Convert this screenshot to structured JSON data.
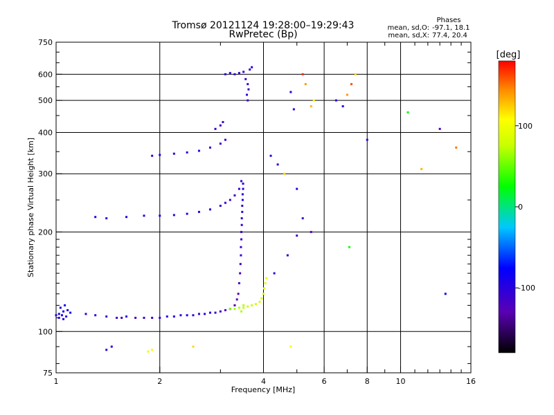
{
  "header": {
    "title": "Tromsø 20121124 19:28:00–19:29:43",
    "subtitle": "RwPretec (Bp)",
    "phase_heading": "Phases",
    "phase_o_label": "mean, sd,O:",
    "phase_o_value": "-97.1, 18.1",
    "phase_x_label": "mean, sd,X:",
    "phase_x_value": "77.4, 20.4"
  },
  "chart_data": {
    "type": "scatter",
    "xlabel": "Frequency [MHz]",
    "ylabel": "Stationary phase Virtual Height [km]",
    "xscale": "log",
    "yscale": "log",
    "xlim": [
      1,
      16
    ],
    "ylim": [
      75,
      750
    ],
    "grid": true,
    "xticks": [
      1,
      2,
      4,
      6,
      8,
      10,
      16
    ],
    "xticklabels": [
      "1",
      "2",
      "4",
      "6",
      "8",
      "10",
      "16"
    ],
    "xgrid": [
      2,
      4,
      6,
      8,
      10
    ],
    "yticks": [
      75,
      100,
      200,
      300,
      400,
      500,
      600,
      750
    ],
    "yticklabels": [
      "75",
      "100",
      "200",
      "300",
      "400",
      "500",
      "600",
      "750"
    ],
    "ygrid": [
      100,
      200,
      300,
      400,
      500,
      600
    ],
    "colorbar": {
      "label": "[deg]",
      "range": [
        -180,
        180
      ],
      "ticks": [
        100,
        0,
        -100
      ],
      "ticklabels": [
        "100",
        "0",
        "-100"
      ]
    },
    "series": [
      {
        "values": [
          [
            1.0,
            112,
            -95
          ],
          [
            1.02,
            113,
            -80
          ],
          [
            1.04,
            112,
            -95
          ],
          [
            1.05,
            115,
            -85
          ],
          [
            1.07,
            111,
            -100
          ],
          [
            1.03,
            118,
            -90
          ],
          [
            1.06,
            120,
            -80
          ],
          [
            1.08,
            116,
            -95
          ],
          [
            1.1,
            114,
            -90
          ],
          [
            1.02,
            110,
            -100
          ],
          [
            1.05,
            109,
            -95
          ]
        ]
      },
      {
        "values": [
          [
            1.22,
            113,
            -100
          ],
          [
            1.3,
            112,
            -105
          ],
          [
            1.4,
            111,
            -105
          ],
          [
            1.5,
            110,
            -110
          ],
          [
            1.55,
            110,
            -108
          ],
          [
            1.6,
            111,
            -100
          ],
          [
            1.7,
            110,
            -110
          ],
          [
            1.8,
            110,
            -108
          ],
          [
            1.9,
            110,
            -105
          ],
          [
            2.0,
            110,
            -100
          ],
          [
            2.1,
            111,
            -100
          ],
          [
            2.2,
            111,
            -98
          ],
          [
            2.3,
            112,
            -100
          ],
          [
            2.4,
            112,
            -98
          ],
          [
            2.5,
            112,
            -100
          ],
          [
            2.6,
            113,
            -95
          ],
          [
            2.7,
            113,
            -100
          ],
          [
            2.8,
            114,
            -100
          ],
          [
            2.9,
            114,
            -105
          ],
          [
            3.0,
            115,
            -110
          ],
          [
            3.1,
            116,
            -120
          ],
          [
            3.2,
            117,
            -130
          ],
          [
            3.3,
            120,
            -135
          ],
          [
            3.35,
            125,
            -130
          ],
          [
            3.38,
            130,
            -125
          ],
          [
            3.4,
            140,
            -120
          ],
          [
            3.42,
            150,
            -115
          ],
          [
            3.43,
            160,
            -112
          ],
          [
            3.44,
            170,
            -110
          ],
          [
            3.44,
            180,
            -108
          ],
          [
            3.45,
            190,
            -106
          ],
          [
            3.45,
            200,
            -104
          ],
          [
            3.46,
            210,
            -102
          ],
          [
            3.46,
            220,
            -102
          ],
          [
            3.47,
            230,
            -100
          ],
          [
            3.47,
            240,
            -100
          ],
          [
            3.48,
            250,
            -100
          ],
          [
            3.48,
            260,
            -100
          ],
          [
            3.49,
            270,
            -98
          ],
          [
            3.49,
            280,
            -98
          ]
        ]
      },
      {
        "values": [
          [
            3.2,
            117,
            60
          ],
          [
            3.3,
            117,
            65
          ],
          [
            3.4,
            118,
            70
          ],
          [
            3.5,
            118,
            72
          ],
          [
            3.6,
            119,
            75
          ],
          [
            3.7,
            120,
            78
          ],
          [
            3.8,
            121,
            80
          ],
          [
            3.9,
            123,
            82
          ],
          [
            3.95,
            126,
            85
          ],
          [
            4.0,
            130,
            88
          ],
          [
            4.02,
            135,
            90
          ],
          [
            4.05,
            140,
            92
          ],
          [
            4.08,
            145,
            95
          ],
          [
            3.5,
            120,
            70
          ],
          [
            3.45,
            115,
            68
          ]
        ]
      },
      {
        "values": [
          [
            1.3,
            222,
            -100
          ],
          [
            1.4,
            220,
            -105
          ],
          [
            1.6,
            222,
            -100
          ],
          [
            1.8,
            224,
            -98
          ],
          [
            2.0,
            224,
            -100
          ],
          [
            2.2,
            225,
            -98
          ],
          [
            2.4,
            227,
            -100
          ],
          [
            2.6,
            230,
            -98
          ],
          [
            2.8,
            234,
            -100
          ],
          [
            3.0,
            240,
            -105
          ],
          [
            3.1,
            245,
            -108
          ],
          [
            3.2,
            250,
            -110
          ],
          [
            3.3,
            258,
            -112
          ],
          [
            3.4,
            270,
            -110
          ],
          [
            3.45,
            285,
            -105
          ]
        ]
      },
      {
        "values": [
          [
            1.9,
            340,
            -100
          ],
          [
            2.0,
            342,
            -98
          ],
          [
            2.2,
            345,
            -100
          ],
          [
            2.4,
            348,
            -100
          ],
          [
            2.6,
            352,
            -102
          ],
          [
            2.8,
            360,
            -104
          ],
          [
            3.0,
            370,
            -106
          ],
          [
            3.1,
            380,
            -108
          ],
          [
            3.0,
            420,
            -110
          ],
          [
            3.05,
            430,
            -112
          ],
          [
            2.9,
            410,
            -108
          ]
        ]
      },
      {
        "values": [
          [
            3.3,
            600,
            -105
          ],
          [
            3.4,
            605,
            -108
          ],
          [
            3.5,
            610,
            -110
          ],
          [
            3.55,
            580,
            -112
          ],
          [
            3.6,
            560,
            -110
          ],
          [
            3.62,
            540,
            -108
          ],
          [
            3.58,
            520,
            -110
          ],
          [
            3.6,
            500,
            -112
          ],
          [
            3.65,
            620,
            -105
          ],
          [
            3.7,
            630,
            -100
          ],
          [
            3.2,
            605,
            -100
          ],
          [
            3.1,
            600,
            -95
          ]
        ]
      },
      {
        "values": [
          [
            1.4,
            88,
            -100
          ],
          [
            1.45,
            90,
            -95
          ],
          [
            1.85,
            87,
            100
          ],
          [
            1.9,
            88,
            110
          ],
          [
            2.5,
            90,
            120
          ],
          [
            4.8,
            90,
            110
          ]
        ]
      },
      {
        "values": [
          [
            4.2,
            340,
            -100
          ],
          [
            4.4,
            320,
            -105
          ],
          [
            4.6,
            300,
            120
          ],
          [
            5.0,
            270,
            -100
          ],
          [
            5.2,
            220,
            -110
          ],
          [
            5.5,
            200,
            -120
          ],
          [
            5.0,
            195,
            -110
          ],
          [
            4.7,
            170,
            -95
          ],
          [
            4.3,
            150,
            -100
          ],
          [
            4.9,
            470,
            -100
          ],
          [
            4.8,
            530,
            -90
          ],
          [
            5.3,
            560,
            140
          ],
          [
            5.2,
            600,
            170
          ],
          [
            5.5,
            480,
            130
          ],
          [
            5.6,
            500,
            110
          ],
          [
            6.5,
            500,
            -100
          ],
          [
            6.8,
            480,
            -90
          ],
          [
            7.0,
            520,
            140
          ],
          [
            7.2,
            560,
            160
          ],
          [
            7.4,
            600,
            120
          ],
          [
            8.0,
            380,
            -110
          ],
          [
            10.5,
            460,
            20
          ],
          [
            11.5,
            310,
            130
          ],
          [
            13.0,
            410,
            -120
          ],
          [
            13.5,
            130,
            -80
          ],
          [
            14.5,
            360,
            150
          ],
          [
            7.1,
            180,
            30
          ]
        ]
      }
    ]
  }
}
